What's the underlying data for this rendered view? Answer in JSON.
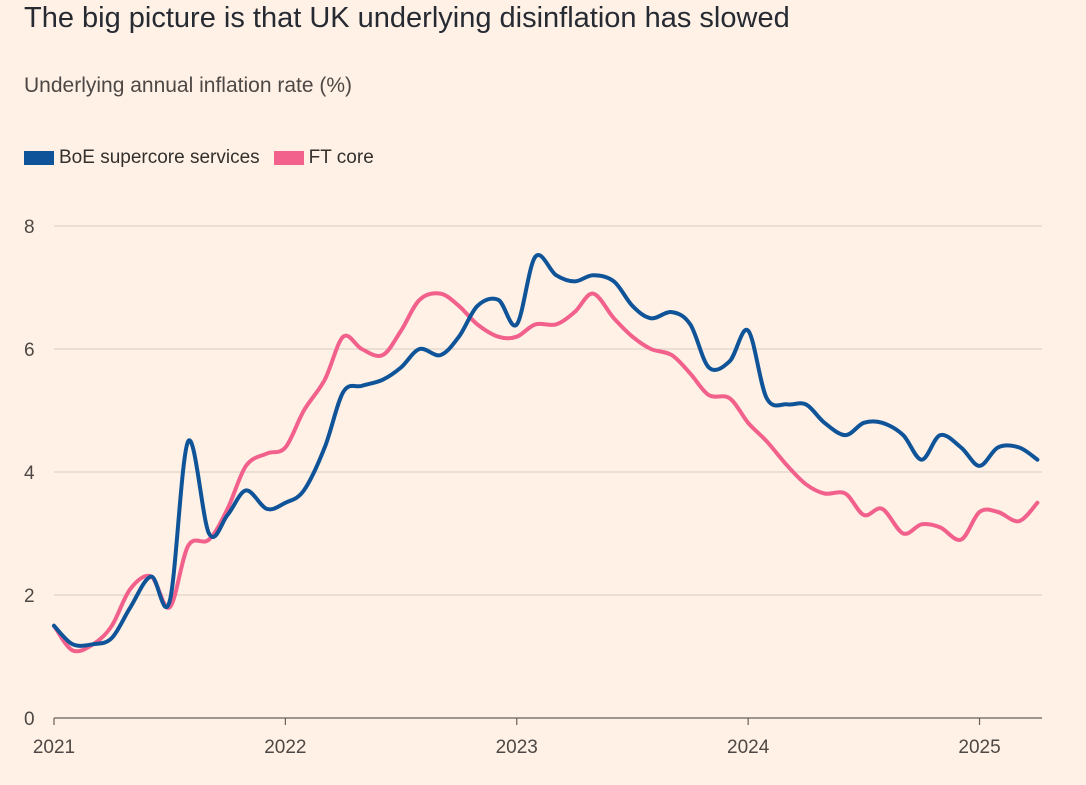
{
  "title": "The big picture is that UK underlying disinflation has slowed",
  "subtitle": "Underlying annual inflation rate (%)",
  "chart_data": {
    "type": "line",
    "ylim": [
      0,
      8
    ],
    "y_ticks": [
      "0",
      "2",
      "4",
      "6",
      "8"
    ],
    "x_ticks": [
      "2021",
      "2022",
      "2023",
      "2024",
      "2025"
    ],
    "xlim": [
      2021.0,
      2025.27
    ],
    "grid": true,
    "legend_position": "top-left",
    "series": [
      {
        "name": "BoE supercore services",
        "color": "#0f5499",
        "x": [
          2021.0,
          2021.08,
          2021.17,
          2021.25,
          2021.33,
          2021.42,
          2021.5,
          2021.58,
          2021.67,
          2021.75,
          2021.83,
          2021.92,
          2022.0,
          2022.08,
          2022.17,
          2022.25,
          2022.33,
          2022.42,
          2022.5,
          2022.58,
          2022.67,
          2022.75,
          2022.83,
          2022.92,
          2023.0,
          2023.08,
          2023.17,
          2023.25,
          2023.33,
          2023.42,
          2023.5,
          2023.58,
          2023.67,
          2023.75,
          2023.83,
          2023.92,
          2024.0,
          2024.08,
          2024.17,
          2024.25,
          2024.33,
          2024.42,
          2024.5,
          2024.58,
          2024.67,
          2024.75,
          2024.83,
          2024.92,
          2025.0,
          2025.08,
          2025.17,
          2025.25
        ],
        "values": [
          1.5,
          1.2,
          1.2,
          1.3,
          1.8,
          2.3,
          1.9,
          4.5,
          3.0,
          3.3,
          3.7,
          3.4,
          3.5,
          3.7,
          4.4,
          5.3,
          5.4,
          5.5,
          5.7,
          6.0,
          5.9,
          6.2,
          6.7,
          6.8,
          6.4,
          7.5,
          7.2,
          7.1,
          7.2,
          7.1,
          6.7,
          6.5,
          6.6,
          6.4,
          5.7,
          5.8,
          6.3,
          5.2,
          5.1,
          5.1,
          4.8,
          4.6,
          4.8,
          4.8,
          4.6,
          4.2,
          4.6,
          4.4,
          4.1,
          4.4,
          4.4,
          4.2
        ]
      },
      {
        "name": "FT core",
        "color": "#f2618c",
        "x": [
          2021.0,
          2021.08,
          2021.17,
          2021.25,
          2021.33,
          2021.42,
          2021.5,
          2021.58,
          2021.67,
          2021.75,
          2021.83,
          2021.92,
          2022.0,
          2022.08,
          2022.17,
          2022.25,
          2022.33,
          2022.42,
          2022.5,
          2022.58,
          2022.67,
          2022.75,
          2022.83,
          2022.92,
          2023.0,
          2023.08,
          2023.17,
          2023.25,
          2023.33,
          2023.42,
          2023.5,
          2023.58,
          2023.67,
          2023.75,
          2023.83,
          2023.92,
          2024.0,
          2024.08,
          2024.17,
          2024.25,
          2024.33,
          2024.42,
          2024.5,
          2024.58,
          2024.67,
          2024.75,
          2024.83,
          2024.92,
          2025.0,
          2025.08,
          2025.17,
          2025.25
        ],
        "values": [
          1.5,
          1.1,
          1.2,
          1.5,
          2.1,
          2.3,
          1.8,
          2.8,
          2.9,
          3.4,
          4.1,
          4.3,
          4.4,
          5.0,
          5.5,
          6.2,
          6.0,
          5.9,
          6.3,
          6.8,
          6.9,
          6.7,
          6.4,
          6.2,
          6.2,
          6.4,
          6.4,
          6.6,
          6.9,
          6.5,
          6.2,
          6.0,
          5.9,
          5.6,
          5.25,
          5.2,
          4.8,
          4.5,
          4.1,
          3.8,
          3.65,
          3.65,
          3.3,
          3.4,
          3.0,
          3.15,
          3.1,
          2.9,
          3.35,
          3.35,
          3.2,
          3.5
        ]
      }
    ]
  }
}
